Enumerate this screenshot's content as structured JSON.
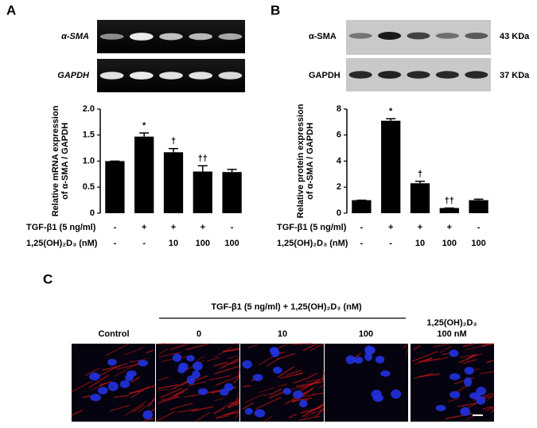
{
  "chart_data": [
    {
      "type": "bar",
      "panel": "A",
      "ylabel": [
        "Relative mRNA expression",
        "of α-SMA / GAPDH"
      ],
      "categories": [
        null,
        null,
        null,
        null,
        null
      ],
      "values": [
        1.0,
        1.47,
        1.17,
        0.8,
        0.79
      ],
      "errors": [
        0,
        0.07,
        0.07,
        0.11,
        0.05
      ],
      "annotations": [
        null,
        "*",
        "†",
        "††",
        null
      ],
      "color": "#000000",
      "ylim": [
        0,
        2.0
      ],
      "yticks": [
        0,
        0.5,
        {
          "value": 1.0,
          "label": "1.0"
        },
        1.5,
        {
          "value": 2.0,
          "label": "2.0"
        }
      ],
      "treatments": [
        {
          "label": "TGF-β1 (5 ng/ml)",
          "values": [
            "-",
            "+",
            "+",
            "+",
            "-"
          ]
        },
        {
          "label": "1,25(OH)₂D₃ (nM)",
          "values": [
            "-",
            "-",
            "10",
            "100",
            "100"
          ]
        }
      ]
    },
    {
      "type": "bar",
      "panel": "B",
      "ylabel": [
        "Relative protein expression",
        "of α-SMA / GAPDH"
      ],
      "categories": [
        null,
        null,
        null,
        null,
        null
      ],
      "values": [
        1.0,
        7.1,
        2.3,
        0.4,
        1.0
      ],
      "errors": [
        0,
        0.15,
        0.15,
        0,
        0.08
      ],
      "annotations": [
        null,
        "*",
        "†",
        "††",
        null
      ],
      "color": "#000000",
      "ylim": [
        0,
        8
      ],
      "yticks": [
        0,
        2,
        4,
        6,
        8
      ],
      "treatments": [
        {
          "label": "TGF-β1 (5 ng/ml)",
          "values": [
            "-",
            "+",
            "+",
            "+",
            "-"
          ]
        },
        {
          "label": "1,25(OH)₂D₃ (nM)",
          "values": [
            "-",
            "-",
            "10",
            "100",
            "100"
          ]
        }
      ]
    }
  ],
  "blots": {
    "a": {
      "bands": [
        "α-SMA",
        "GAPDH"
      ]
    },
    "b": {
      "bands": [
        "α-SMA",
        "GAPDH"
      ],
      "sizes": [
        "43 KDa",
        "37 KDa"
      ]
    }
  },
  "panel_c": {
    "label": "C",
    "header": "TGF-β1 (5 ng/ml) + 1,25(OH)₂D₃ (nM)",
    "columns": [
      "Control",
      "0",
      "10",
      "100"
    ],
    "last_column": [
      "1,25(OH)₂D₃",
      "100 nM"
    ]
  }
}
